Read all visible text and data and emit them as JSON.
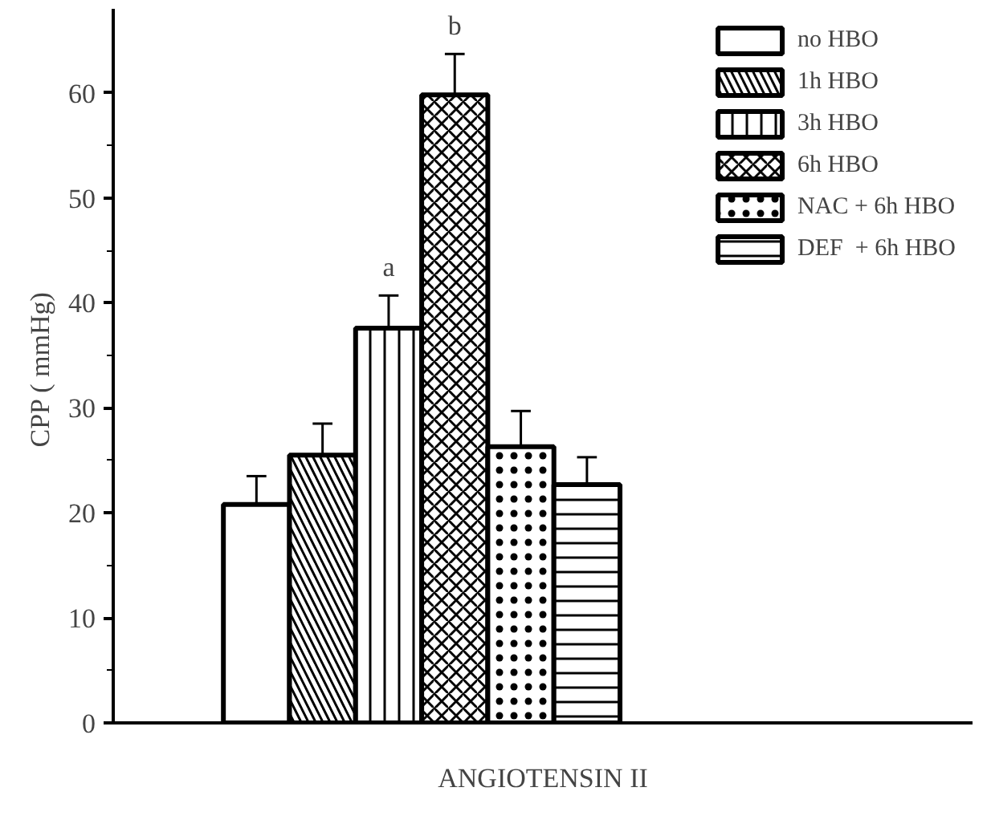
{
  "chart_data": {
    "type": "bar",
    "xlabel": "ANGIOTENSIN II",
    "ylabel": "CPP  ( mmHg)",
    "categories": [
      null
    ],
    "series": [
      {
        "name": "no HBO",
        "color": "#ffffff",
        "values": [
          20.8
        ],
        "errors": [
          2.7
        ]
      },
      {
        "name": "1h HBO",
        "color": "#ffffff",
        "values": [
          25.5
        ],
        "errors": [
          3.0
        ]
      },
      {
        "name": "3h HBO",
        "color": "#ffffff",
        "values": [
          37.6
        ],
        "errors": [
          3.1
        ]
      },
      {
        "name": "6h HBO",
        "color": "#ffffff",
        "values": [
          59.8
        ],
        "errors": [
          3.9
        ]
      },
      {
        "name": "NAC + 6h HBO",
        "color": "#ffffff",
        "values": [
          26.3
        ],
        "errors": [
          3.4
        ]
      },
      {
        "name": "DEF  + 6h HBO",
        "color": "#ffffff",
        "values": [
          22.7
        ],
        "errors": [
          2.6
        ]
      }
    ],
    "annotations": [
      "a",
      "b"
    ],
    "ylim": [
      0,
      68
    ],
    "yticks": [
      0,
      10,
      20,
      30,
      40,
      50,
      60
    ],
    "grid": false,
    "legend": "top right",
    "tick_labels": "y"
  }
}
